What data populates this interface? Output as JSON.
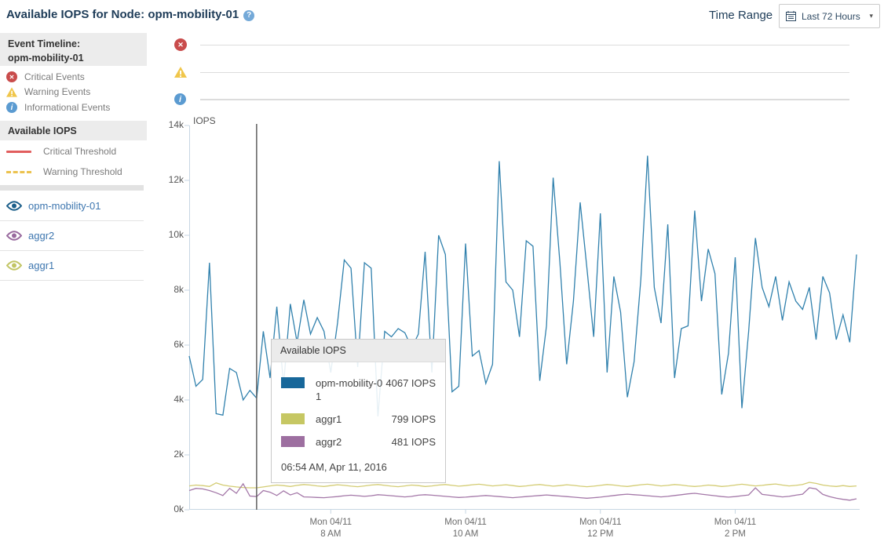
{
  "header": {
    "title": "Available IOPS for Node: opm-mobility-01",
    "help_icon": "?"
  },
  "time_range": {
    "label": "Time Range",
    "selected": "Last 72 Hours",
    "calendar_icon": "calendar",
    "caret": "▾"
  },
  "sidebar": {
    "event_timeline_title_line1": "Event Timeline:",
    "event_timeline_title_line2": "opm-mobility-01",
    "event_legend": [
      {
        "label": "Critical Events",
        "icon": "critical-circle-x-icon",
        "glyph": "✕",
        "color": "#c94c4c"
      },
      {
        "label": "Warning Events",
        "icon": "warning-triangle-icon",
        "glyph": "!",
        "color": "#f0c64b"
      },
      {
        "label": "Informational Events",
        "icon": "info-circle-icon",
        "glyph": "i",
        "color": "#5b9bd1"
      }
    ],
    "metric_title": "Available IOPS",
    "thresholds": [
      {
        "label": "Critical Threshold",
        "style": "solid",
        "color": "#e15d5d"
      },
      {
        "label": "Warning Threshold",
        "style": "dashed",
        "color": "#ecc24f"
      }
    ],
    "series_toggles": [
      {
        "label": "opm-mobility-01",
        "eye_color": "#1c5f8a"
      },
      {
        "label": "aggr2",
        "eye_color": "#996a9e"
      },
      {
        "label": "aggr1",
        "eye_color": "#c2c565"
      }
    ]
  },
  "tooltip": {
    "title": "Available IOPS",
    "rows": [
      {
        "name": "opm-mobility-01",
        "value": "4067 IOPS",
        "color": "#17679a"
      },
      {
        "name": "aggr1",
        "value": "799 IOPS",
        "color": "#c6c763"
      },
      {
        "name": "aggr2",
        "value": "481 IOPS",
        "color": "#9d6fa0"
      }
    ],
    "timestamp": "06:54 AM, Apr 11, 2016"
  },
  "chart_data": {
    "type": "line",
    "title": "Available IOPS for Node: opm-mobility-01",
    "ylabel": "IOPS",
    "xlabel": "",
    "grid": false,
    "legend_position": "left-sidebar",
    "ylim": [
      0,
      14000
    ],
    "x_range": [
      5.9,
      15.8
    ],
    "x_start": 5.9,
    "x_step": 0.1,
    "x_unit": "hour-of-day",
    "cursor_x": 6.9,
    "cursor_time": "06:54 AM, Apr 11, 2016",
    "axis_color": "#c7d6e3",
    "cursor_color": "#5f5f5f",
    "yticks": [
      {
        "value": 0,
        "label": "0k"
      },
      {
        "value": 2000,
        "label": "2k"
      },
      {
        "value": 4000,
        "label": "4k"
      },
      {
        "value": 6000,
        "label": "6k"
      },
      {
        "value": 8000,
        "label": "8k"
      },
      {
        "value": 10000,
        "label": "10k"
      },
      {
        "value": 12000,
        "label": "12k"
      },
      {
        "value": 14000,
        "label": "14k"
      }
    ],
    "xticks": [
      {
        "value": 8,
        "line1": "Mon 04/11",
        "line2": "8 AM"
      },
      {
        "value": 10,
        "line1": "Mon 04/11",
        "line2": "10 AM"
      },
      {
        "value": 12,
        "line1": "Mon 04/11",
        "line2": "12 PM"
      },
      {
        "value": 14,
        "line1": "Mon 04/11",
        "line2": "2 PM"
      }
    ],
    "series": [
      {
        "name": "aggr1",
        "color": "#d3cc73",
        "values": [
          870,
          900,
          880,
          850,
          980,
          900,
          860,
          830,
          810,
          800,
          799,
          830,
          870,
          900,
          880,
          850,
          890,
          920,
          900,
          870,
          850,
          880,
          910,
          890,
          860,
          840,
          870,
          900,
          920,
          890,
          860,
          840,
          870,
          900,
          880,
          850,
          870,
          900,
          920,
          890,
          860,
          880,
          910,
          930,
          900,
          870,
          890,
          910,
          880,
          850,
          870,
          900,
          920,
          890,
          860,
          880,
          910,
          890,
          860,
          840,
          860,
          890,
          920,
          900,
          870,
          850,
          880,
          910,
          930,
          900,
          870,
          890,
          920,
          900,
          870,
          850,
          870,
          900,
          880,
          850,
          870,
          900,
          930,
          900,
          870,
          890,
          920,
          940,
          900,
          870,
          890,
          920,
          1000,
          960,
          900,
          870,
          850,
          880,
          850,
          870
        ]
      },
      {
        "name": "aggr2",
        "color": "#a478a8",
        "values": [
          700,
          780,
          760,
          700,
          620,
          520,
          780,
          600,
          950,
          500,
          481,
          700,
          640,
          520,
          690,
          540,
          620,
          470,
          460,
          450,
          440,
          460,
          480,
          510,
          530,
          510,
          490,
          510,
          550,
          530,
          510,
          490,
          470,
          490,
          530,
          550,
          530,
          510,
          490,
          470,
          450,
          460,
          480,
          500,
          520,
          500,
          480,
          460,
          440,
          460,
          480,
          500,
          520,
          540,
          520,
          500,
          480,
          460,
          440,
          420,
          440,
          460,
          490,
          520,
          550,
          570,
          550,
          530,
          510,
          490,
          470,
          490,
          520,
          550,
          580,
          600,
          570,
          540,
          510,
          480,
          460,
          480,
          510,
          540,
          800,
          560,
          530,
          500,
          470,
          490,
          530,
          570,
          800,
          760,
          560,
          480,
          420,
          380,
          350,
          400
        ]
      },
      {
        "name": "opm-mobility-01",
        "color": "#3181ad",
        "values": [
          5600,
          4500,
          4750,
          9000,
          3500,
          3450,
          5150,
          5000,
          4000,
          4350,
          4067,
          6500,
          4800,
          7400,
          4550,
          7500,
          6100,
          7650,
          6400,
          7000,
          6500,
          5000,
          6800,
          9100,
          8800,
          5200,
          9000,
          8800,
          3400,
          6500,
          6300,
          6600,
          6450,
          5900,
          6400,
          9400,
          5000,
          10000,
          9300,
          4300,
          4500,
          9700,
          5600,
          5800,
          4600,
          5300,
          12700,
          8300,
          8000,
          6300,
          9800,
          9600,
          4700,
          6700,
          12100,
          9000,
          5300,
          7600,
          11200,
          8800,
          6300,
          10800,
          5000,
          8500,
          7200,
          4100,
          5400,
          8400,
          12900,
          8100,
          6800,
          10400,
          4800,
          6600,
          6700,
          10900,
          7600,
          9500,
          8600,
          4200,
          5700,
          9200,
          3700,
          6500,
          9900,
          8100,
          7400,
          8500,
          6900,
          8300,
          7600,
          7300,
          8100,
          6200,
          8500,
          7900,
          6200,
          7100,
          6100,
          9300
        ]
      }
    ]
  }
}
